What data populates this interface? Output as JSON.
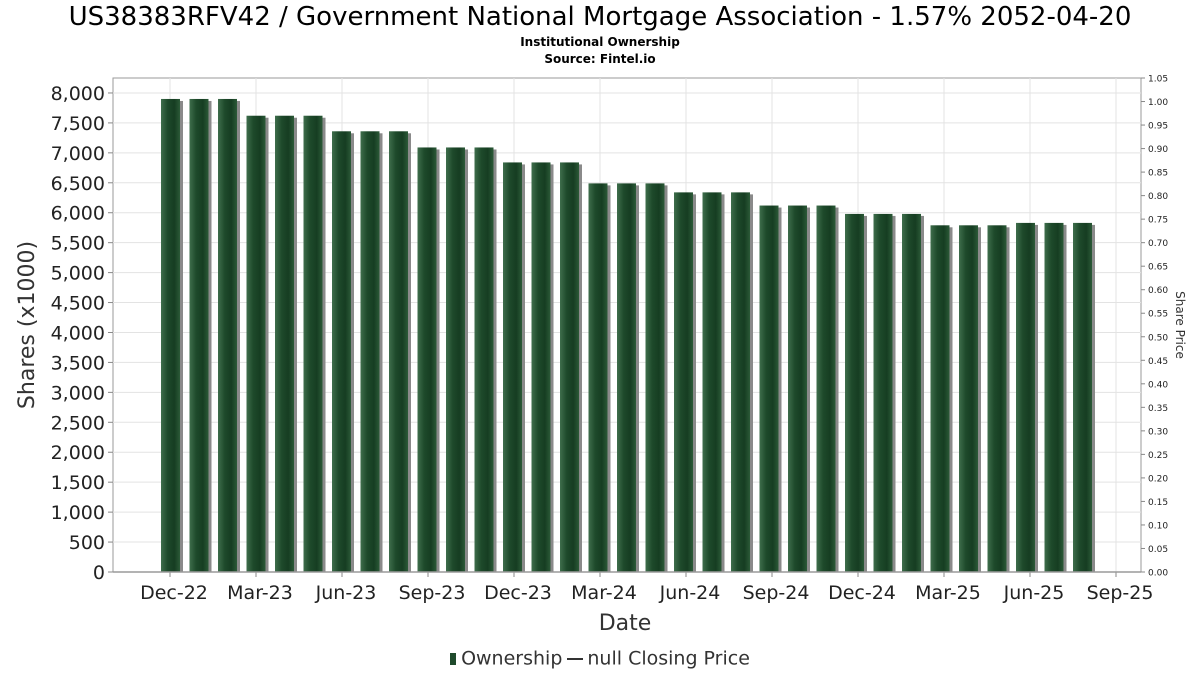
{
  "chart_data": {
    "type": "bar",
    "title": "US38383RFV42 / Government National Mortgage Association - 1.57% 2052-04-20",
    "subtitle": "Institutional Ownership",
    "source": "Source: Fintel.io",
    "xlabel": "Date",
    "ylabel": "Shares (x1000)",
    "y2label": "Share Price",
    "ylim": [
      0,
      8250
    ],
    "y2lim": [
      0,
      1.05
    ],
    "yticks": [
      "0",
      "500",
      "1,000",
      "1,500",
      "2,000",
      "2,500",
      "3,000",
      "3,500",
      "4,000",
      "4,500",
      "5,000",
      "5,500",
      "6,000",
      "6,500",
      "7,000",
      "7,500",
      "8,000"
    ],
    "y2ticks": [
      "0.00",
      "0.05",
      "0.10",
      "0.15",
      "0.20",
      "0.25",
      "0.30",
      "0.35",
      "0.40",
      "0.45",
      "0.50",
      "0.55",
      "0.60",
      "0.65",
      "0.70",
      "0.75",
      "0.80",
      "0.85",
      "0.90",
      "0.95",
      "1.00",
      "1.05"
    ],
    "xticks": [
      "Dec-22",
      "Mar-23",
      "Jun-23",
      "Sep-23",
      "Dec-23",
      "Mar-24",
      "Jun-24",
      "Sep-24",
      "Dec-24",
      "Mar-25",
      "Jun-25",
      "Sep-25"
    ],
    "grid": true,
    "legend_position": "bottom",
    "series": [
      {
        "name": "Ownership",
        "color": "#1f4a2c",
        "values": [
          7900,
          7900,
          7900,
          7620,
          7620,
          7620,
          7360,
          7360,
          7360,
          7090,
          7090,
          7090,
          6840,
          6840,
          6840,
          6490,
          6490,
          6490,
          6340,
          6340,
          6340,
          6120,
          6120,
          6120,
          5980,
          5980,
          5980,
          5790,
          5790,
          5790,
          5830,
          5830,
          5830
        ]
      },
      {
        "name": "null Closing Price",
        "color": "#333333",
        "values": []
      }
    ]
  }
}
